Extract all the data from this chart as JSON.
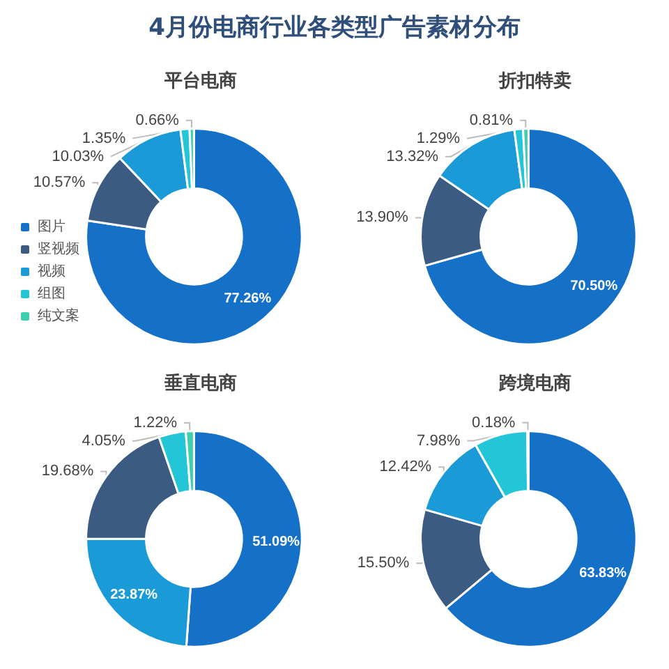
{
  "chart_data": [
    {
      "type": "donut",
      "title": "4月份电商行业各类型广告素材分布",
      "subtitle": "平台电商",
      "categories": [
        "图片",
        "竖视频",
        "视频",
        "组图",
        "纯文案"
      ],
      "values": [
        77.26,
        10.57,
        10.03,
        1.35,
        0.66
      ],
      "value_labels": [
        "77.26%",
        "10.57%",
        "10.03%",
        "1.35%",
        "0.66%"
      ],
      "colors": [
        "#1570c8",
        "#3b5b82",
        "#1a9bd8",
        "#22c6d6",
        "#3ecfae"
      ],
      "legend": "left"
    },
    {
      "type": "donut",
      "subtitle": "折扣特卖",
      "values": [
        70.5,
        13.9,
        13.32,
        1.29,
        0.81
      ],
      "value_labels": [
        "70.50%",
        "13.90%",
        "13.32%",
        "1.29%",
        "0.81%"
      ],
      "colors": [
        "#1570c8",
        "#3b5b82",
        "#1a9bd8",
        "#22c6d6",
        "#3ecfae"
      ]
    },
    {
      "type": "donut",
      "subtitle": "垂直电商",
      "values": [
        51.09,
        23.87,
        19.68,
        4.05,
        1.22
      ],
      "value_labels": [
        "51.09%",
        "23.87%",
        "19.68%",
        "4.05%",
        "1.22%"
      ],
      "colors": [
        "#1570c8",
        "#1a9bd8",
        "#3b5b82",
        "#22c6d6",
        "#3ecfae"
      ]
    },
    {
      "type": "donut",
      "subtitle": "跨境电商",
      "values": [
        63.83,
        15.5,
        12.42,
        7.98,
        0.18
      ],
      "value_labels": [
        "63.83%",
        "15.50%",
        "12.42%",
        "7.98%",
        "0.18%"
      ],
      "colors": [
        "#1570c8",
        "#3b5b82",
        "#1a9bd8",
        "#22c6d6",
        "#3ecfae"
      ]
    }
  ]
}
